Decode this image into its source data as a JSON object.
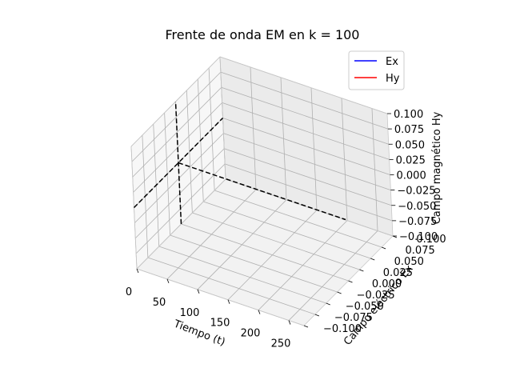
{
  "chart_data": {
    "type": "line",
    "projection": "3d",
    "title": "Frente de onda EM en k = 100",
    "axes": {
      "x": {
        "label": "Tiempo (t)",
        "range": [
          0,
          275
        ],
        "ticks": [
          "0",
          "50",
          "100",
          "150",
          "200",
          "250"
        ]
      },
      "y": {
        "label": "Campo eléctrico Ex",
        "range": [
          -0.1,
          0.1
        ],
        "ticks": [
          "−0.100",
          "−0.075",
          "−0.050",
          "−0.025",
          "0.000",
          "0.025",
          "0.050",
          "0.075",
          "0.100"
        ]
      },
      "z": {
        "label": "Campo magnético Hy",
        "range": [
          -0.1,
          0.1
        ],
        "ticks": [
          "−0.100",
          "−0.075",
          "−0.050",
          "−0.025",
          "0.000",
          "0.025",
          "0.050",
          "0.075",
          "0.100"
        ]
      }
    },
    "grid": true,
    "legend": {
      "placement": "top-right",
      "entries": [
        {
          "label": "Ex",
          "color": "#0000ff"
        },
        {
          "label": "Hy",
          "color": "#ff0000"
        }
      ]
    },
    "reference_lines": [
      {
        "style": "dashed",
        "color": "#000000",
        "from": [
          0,
          0,
          0
        ],
        "to": [
          275,
          0,
          0
        ]
      },
      {
        "style": "dashed",
        "color": "#000000",
        "from": [
          0,
          -0.1,
          0
        ],
        "to": [
          0,
          0.1,
          0
        ]
      },
      {
        "style": "dashed",
        "color": "#000000",
        "from": [
          0,
          0,
          -0.1
        ],
        "to": [
          0,
          0,
          0.1
        ]
      }
    ]
  }
}
